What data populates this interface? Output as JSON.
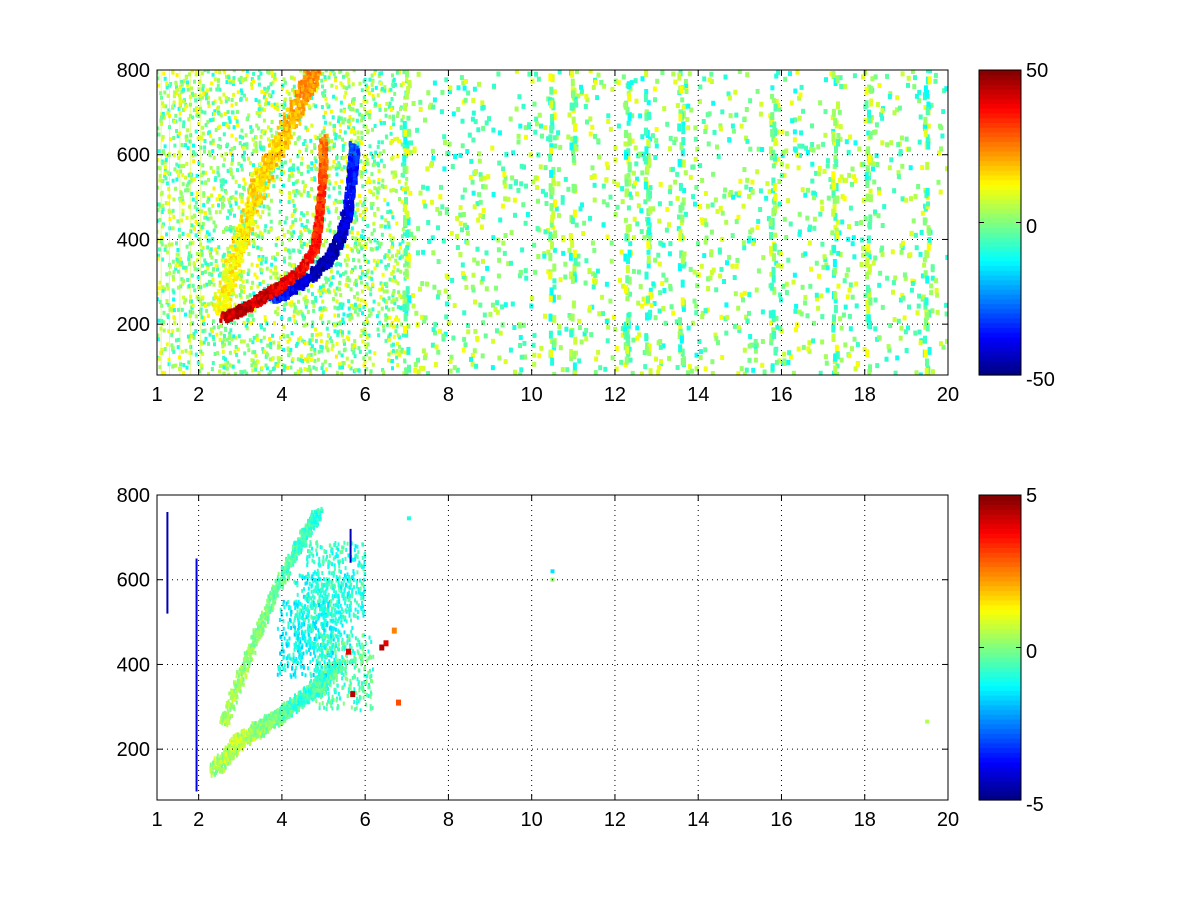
{
  "figure": {
    "background": "#ffffff"
  },
  "chart_data": [
    {
      "type": "heatmap",
      "xlim": [
        1,
        20
      ],
      "ylim": [
        80,
        800
      ],
      "x_ticks": [
        1,
        2,
        4,
        6,
        8,
        10,
        12,
        14,
        16,
        18,
        20
      ],
      "x_tick_labels": [
        "1",
        "2",
        "4",
        "6",
        "8",
        "10",
        "12",
        "14",
        "16",
        "18",
        "20"
      ],
      "y_ticks": [
        200,
        400,
        600,
        800
      ],
      "y_tick_labels": [
        "200",
        "400",
        "600",
        "800"
      ],
      "grid": true,
      "colormap": "jet",
      "colorbar": {
        "range": [
          -50,
          50
        ],
        "tick_labels": [
          "50",
          "0",
          "-50"
        ]
      },
      "features": {
        "lower_ridge": [
          [
            2.6,
            215,
            40
          ],
          [
            3.0,
            230,
            44
          ],
          [
            3.5,
            260,
            42
          ],
          [
            4.0,
            290,
            40
          ],
          [
            4.5,
            330,
            38
          ],
          [
            4.8,
            380,
            36
          ],
          [
            4.9,
            450,
            34
          ],
          [
            5.0,
            560,
            30
          ],
          [
            5.0,
            640,
            24
          ]
        ],
        "negative_ridge": [
          [
            3.8,
            260,
            -34
          ],
          [
            4.2,
            280,
            -40
          ],
          [
            4.7,
            310,
            -44
          ],
          [
            5.1,
            350,
            -46
          ],
          [
            5.4,
            400,
            -44
          ],
          [
            5.6,
            470,
            -40
          ],
          [
            5.7,
            560,
            -36
          ],
          [
            5.75,
            620,
            -30
          ]
        ],
        "upper_ridge": [
          [
            2.5,
            230,
            12
          ],
          [
            3.0,
            390,
            14
          ],
          [
            3.5,
            540,
            16
          ],
          [
            4.0,
            630,
            18
          ],
          [
            4.5,
            740,
            22
          ],
          [
            4.8,
            800,
            24
          ]
        ],
        "stripes_x": [
          7.0,
          10.5,
          11.0,
          12.3,
          12.8,
          13.6,
          15.8,
          17.3,
          18.1,
          19.5
        ],
        "noise_band": [
          1.0,
          7.0
        ]
      }
    },
    {
      "type": "heatmap",
      "xlim": [
        1,
        20
      ],
      "ylim": [
        80,
        800
      ],
      "x_ticks": [
        1,
        2,
        4,
        6,
        8,
        10,
        12,
        14,
        16,
        18,
        20
      ],
      "x_tick_labels": [
        "1",
        "2",
        "4",
        "6",
        "8",
        "10",
        "12",
        "14",
        "16",
        "18",
        "20"
      ],
      "y_ticks": [
        200,
        400,
        600,
        800
      ],
      "y_tick_labels": [
        "200",
        "400",
        "600",
        "800"
      ],
      "grid": true,
      "colormap": "jet",
      "colorbar": {
        "range": [
          -5,
          5
        ],
        "tick_labels": [
          "5",
          "0",
          "-5"
        ]
      },
      "features": {
        "lower_ridge": [
          [
            2.4,
            150,
            0.3
          ],
          [
            3.0,
            220,
            0.6
          ],
          [
            3.5,
            250,
            0.2
          ],
          [
            4.0,
            280,
            -0.3
          ],
          [
            4.5,
            320,
            -0.8
          ],
          [
            5.0,
            360,
            -0.6
          ],
          [
            5.4,
            400,
            -0.4
          ]
        ],
        "upper_ridge": [
          [
            2.6,
            260,
            0.4
          ],
          [
            3.2,
            420,
            0.2
          ],
          [
            3.8,
            560,
            -0.2
          ],
          [
            4.4,
            680,
            -0.6
          ],
          [
            4.9,
            760,
            -0.8
          ]
        ],
        "blob": [
          [
            4.6,
            460,
            -1.2
          ],
          [
            5.0,
            520,
            -1.0
          ],
          [
            5.3,
            600,
            -0.8
          ],
          [
            5.5,
            380,
            -0.5
          ]
        ],
        "hotspots": [
          [
            6.4,
            440,
            4.5
          ],
          [
            6.5,
            450,
            4.0
          ],
          [
            5.7,
            330,
            4.5
          ],
          [
            6.8,
            310,
            3.0
          ],
          [
            6.7,
            480,
            2.5
          ],
          [
            5.6,
            430,
            4.0
          ]
        ],
        "vertical_lines": [
          [
            1.25,
            520,
            760,
            -4.5
          ],
          [
            1.95,
            100,
            650,
            -4.0
          ],
          [
            5.65,
            640,
            720,
            -4.5
          ]
        ],
        "stray": [
          [
            10.5,
            620,
            -1.5
          ],
          [
            10.5,
            600,
            0.2
          ],
          [
            19.5,
            265,
            0.5
          ],
          [
            7.05,
            745,
            -1.0
          ]
        ]
      }
    }
  ]
}
